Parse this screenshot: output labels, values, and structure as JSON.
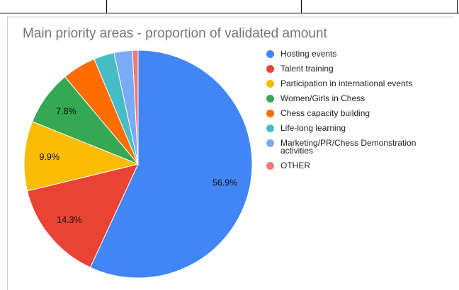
{
  "chart_data": {
    "type": "pie",
    "title": "Main priority areas - proportion of validated amount",
    "categories": [
      "Hosting events",
      "Talent training",
      "Participation in international events",
      "Women/Girls in Chess",
      "Chess capacity building",
      "Life-long learning",
      "Marketing/PR/Chess Demonstration activities",
      "OTHER"
    ],
    "values": [
      56.9,
      14.3,
      9.9,
      7.8,
      4.8,
      2.9,
      2.6,
      0.8
    ],
    "value_labels": [
      "56.9%",
      "14.3%",
      "9.9%",
      "7.8%",
      null,
      null,
      null,
      null
    ],
    "colors": [
      "#4285f4",
      "#ea4335",
      "#fbbc04",
      "#34a853",
      "#ff6d01",
      "#46bdc6",
      "#7baaf7",
      "#f07b72"
    ],
    "legend": "right"
  }
}
